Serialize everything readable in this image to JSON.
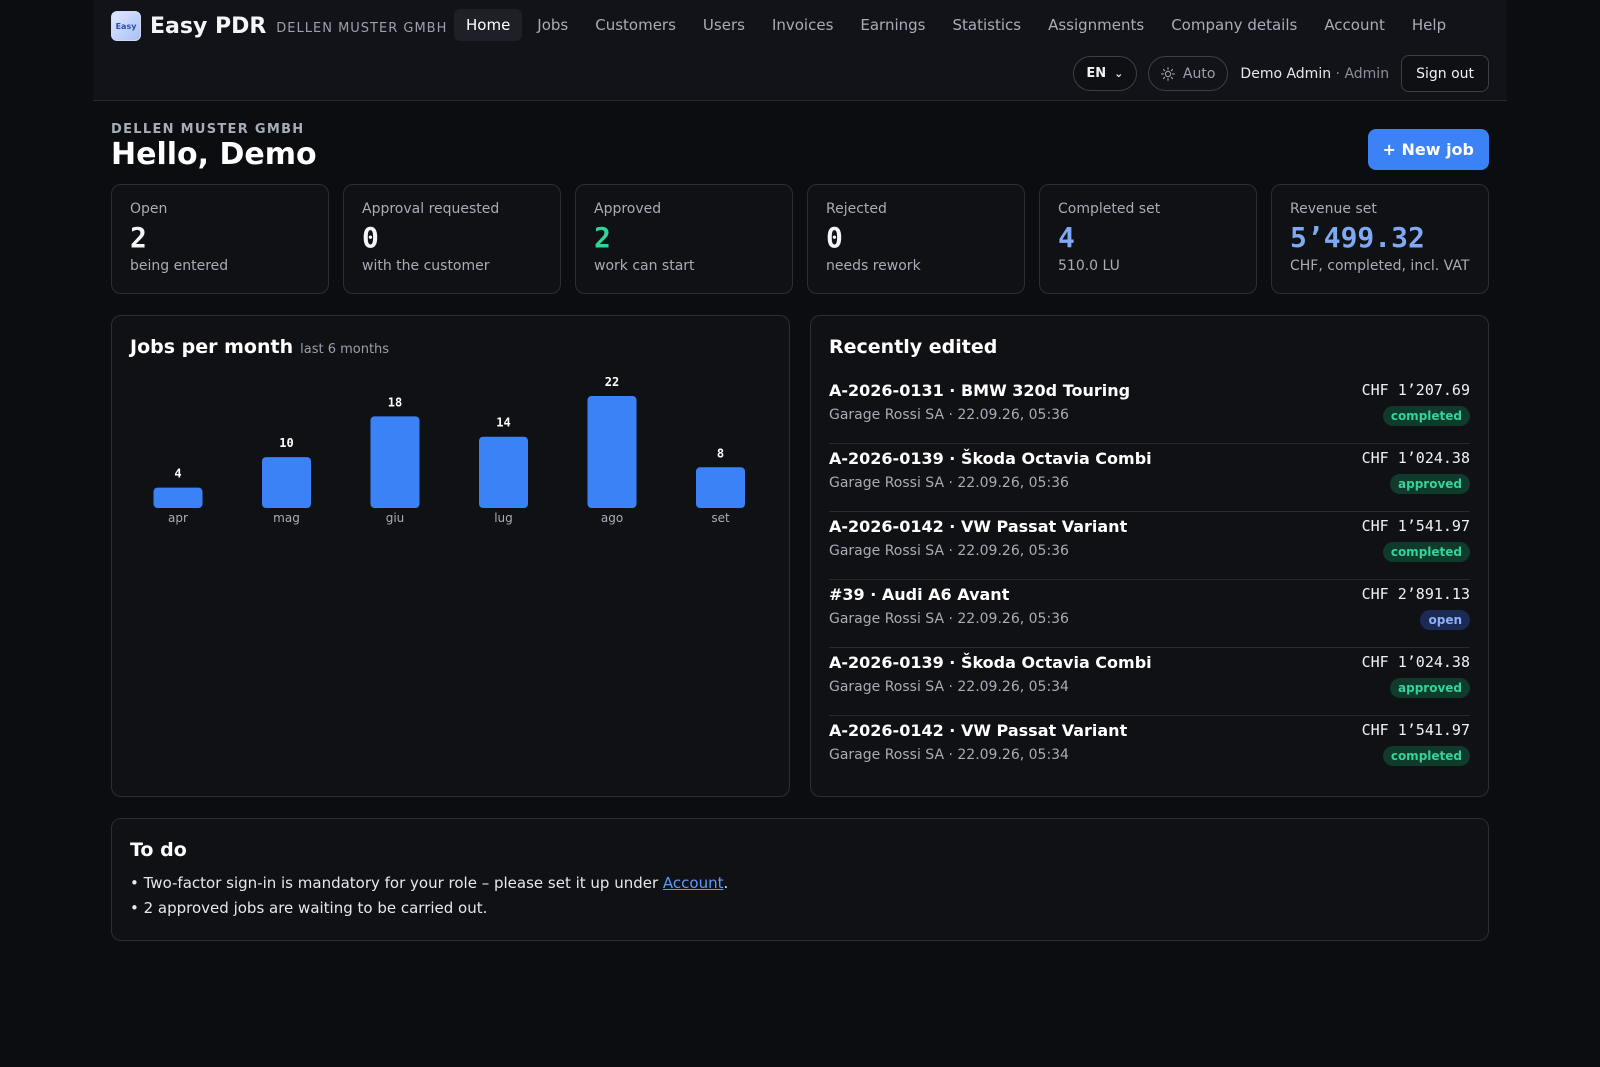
{
  "header": {
    "logo_text": "Easy",
    "brand": "Easy PDR",
    "company": "DELLEN MUSTER GMBH",
    "nav": [
      "Home",
      "Jobs",
      "Customers",
      "Users",
      "Invoices",
      "Earnings",
      "Statistics",
      "Assignments",
      "Company details",
      "Account",
      "Help"
    ],
    "active_nav": "Home",
    "language": "EN",
    "theme": "Auto",
    "user_name": "Demo Admin",
    "user_role": "· Admin",
    "sign_out": "Sign out"
  },
  "greeting": {
    "company": "DELLEN MUSTER GMBH",
    "hello": "Hello, Demo",
    "new_job": "+ New job"
  },
  "stats": [
    {
      "label": "Open",
      "value": "2",
      "sub": "being entered",
      "color": "#f4f5f7"
    },
    {
      "label": "Approval requested",
      "value": "0",
      "sub": "with the customer",
      "color": "#f4f5f7"
    },
    {
      "label": "Approved",
      "value": "2",
      "sub": "work can start",
      "color": "#34d399"
    },
    {
      "label": "Rejected",
      "value": "0",
      "sub": "needs rework",
      "color": "#f4f5f7"
    },
    {
      "label": "Completed set",
      "value": "4",
      "sub": "510.0 LU",
      "color": "#7fa9f2"
    },
    {
      "label": "Revenue set",
      "value": "5’499.32",
      "sub": "CHF, completed, incl. VAT",
      "color": "#7fa9f2"
    }
  ],
  "chart_data": {
    "type": "bar",
    "title": "Jobs per month",
    "subtitle": "last 6 months",
    "categories": [
      "apr",
      "mag",
      "giu",
      "lug",
      "ago",
      "set"
    ],
    "values": [
      4,
      10,
      18,
      14,
      22,
      8
    ],
    "bar_color": "#3b82f6"
  },
  "recent": {
    "title": "Recently edited",
    "items": [
      {
        "title": "A-2026-0131 · BMW 320d Touring",
        "sub": "Garage Rossi SA · 22.09.26, 05:36",
        "amount": "CHF 1’207.69",
        "status": "completed"
      },
      {
        "title": "A-2026-0139 · Škoda Octavia Combi",
        "sub": "Garage Rossi SA · 22.09.26, 05:36",
        "amount": "CHF 1’024.38",
        "status": "approved"
      },
      {
        "title": "A-2026-0142 · VW Passat Variant",
        "sub": "Garage Rossi SA · 22.09.26, 05:36",
        "amount": "CHF 1’541.97",
        "status": "completed"
      },
      {
        "title": "#39 · Audi A6 Avant",
        "sub": "Garage Rossi SA · 22.09.26, 05:36",
        "amount": "CHF 2’891.13",
        "status": "open"
      },
      {
        "title": "A-2026-0139 · Škoda Octavia Combi",
        "sub": "Garage Rossi SA · 22.09.26, 05:34",
        "amount": "CHF 1’024.38",
        "status": "approved"
      },
      {
        "title": "A-2026-0142 · VW Passat Variant",
        "sub": "Garage Rossi SA · 22.09.26, 05:34",
        "amount": "CHF 1’541.97",
        "status": "completed"
      }
    ]
  },
  "todo": {
    "title": "To do",
    "item1_before": "• Two-factor sign-in is mandatory for your role – please set it up under ",
    "item1_link": "Account",
    "item1_after": ".",
    "item2": "• 2 approved jobs are waiting to be carried out."
  }
}
